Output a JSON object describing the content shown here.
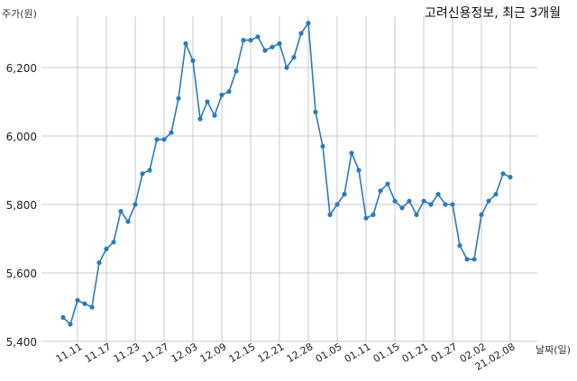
{
  "chart_data": {
    "type": "line",
    "title": "고려신용정보, 최근 3개월",
    "ylabel": "주가(원)",
    "xlabel": "날짜(일)",
    "ylim": [
      5400,
      6350
    ],
    "yticks": [
      5400,
      5600,
      5800,
      6000,
      6200
    ],
    "ytick_labels": [
      "5,400",
      "5,600",
      "5,800",
      "6,000",
      "6,200"
    ],
    "grid": true,
    "colors": {
      "line": "#2b7bba",
      "grid": "#c8c8c8"
    },
    "x": [
      "11.09",
      "11.10",
      "11.11",
      "11.12",
      "11.13",
      "11.16",
      "11.17",
      "11.18",
      "11.19",
      "11.20",
      "11.23",
      "11.24",
      "11.25",
      "11.26",
      "11.27",
      "11.30",
      "12.01",
      "12.02",
      "12.03",
      "12.04",
      "12.07",
      "12.08",
      "12.09",
      "12.10",
      "12.11",
      "12.14",
      "12.15",
      "12.16",
      "12.17",
      "12.18",
      "12.21",
      "12.22",
      "12.23",
      "12.24",
      "12.28",
      "12.29",
      "12.30",
      "01.04",
      "01.05",
      "01.06",
      "01.07",
      "01.08",
      "01.11",
      "01.12",
      "01.13",
      "01.14",
      "01.15",
      "01.18",
      "01.19",
      "01.20",
      "01.21",
      "01.22",
      "01.25",
      "01.26",
      "01.27",
      "01.28",
      "01.29",
      "02.01",
      "02.02",
      "02.03",
      "02.04",
      "02.05",
      "21.02.08"
    ],
    "values": [
      5470,
      5450,
      5520,
      5510,
      5500,
      5630,
      5670,
      5690,
      5780,
      5750,
      5800,
      5890,
      5900,
      5990,
      5990,
      6010,
      6110,
      6270,
      6220,
      6050,
      6100,
      6060,
      6120,
      6130,
      6190,
      6280,
      6280,
      6290,
      6250,
      6260,
      6270,
      6200,
      6230,
      6300,
      6330,
      6070,
      5970,
      5770,
      5800,
      5830,
      5950,
      5900,
      5760,
      5770,
      5840,
      5860,
      5810,
      5790,
      5810,
      5770,
      5810,
      5800,
      5830,
      5800,
      5800,
      5680,
      5640,
      5640,
      5770,
      5810,
      5830,
      5890,
      5880
    ],
    "xtick_labels": [
      "11.11",
      "11.17",
      "11.23",
      "11.27",
      "12.03",
      "12.09",
      "12.15",
      "12.21",
      "12.28",
      "01.05",
      "01.11",
      "01.15",
      "01.21",
      "01.27",
      "02.02",
      "21.02.08"
    ],
    "xtick_indices": [
      2,
      6,
      10,
      14,
      18,
      22,
      26,
      30,
      34,
      38,
      42,
      46,
      50,
      54,
      58,
      62
    ]
  }
}
